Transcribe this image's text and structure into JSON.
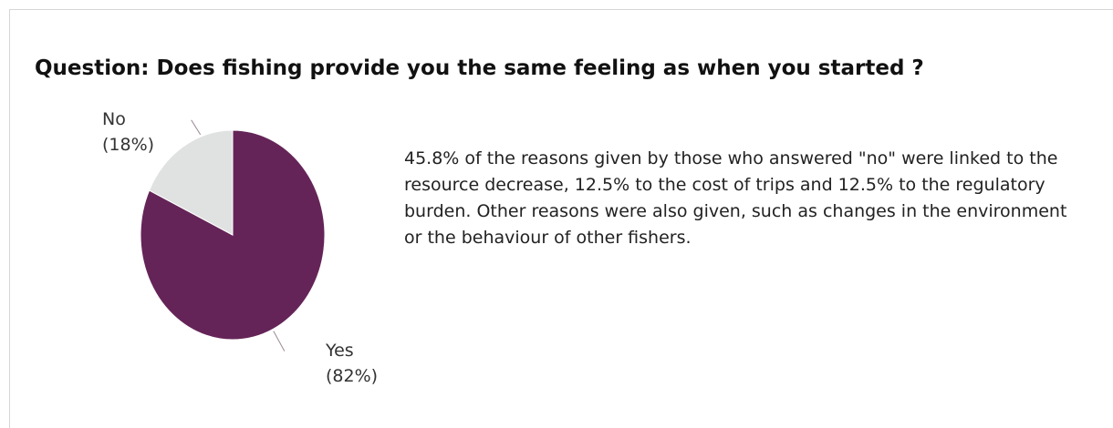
{
  "chart_data": {
    "type": "pie",
    "title": "Question: Does fishing provide you the same feeling as when you started ?",
    "categories": [
      "Yes",
      "No"
    ],
    "values": [
      82,
      18
    ],
    "value_labels": [
      "(82%)",
      "(18%)"
    ],
    "colors": [
      "#652458",
      "#e0e1e1"
    ],
    "annotation": "45.8% of the reasons given by those who answered \"no\" were linked to the resource decrease, 12.5% to the cost of trips and 12.5% to the regulatory burden. Other reasons were also given, such as changes in the environment or the behaviour of other fishers."
  }
}
